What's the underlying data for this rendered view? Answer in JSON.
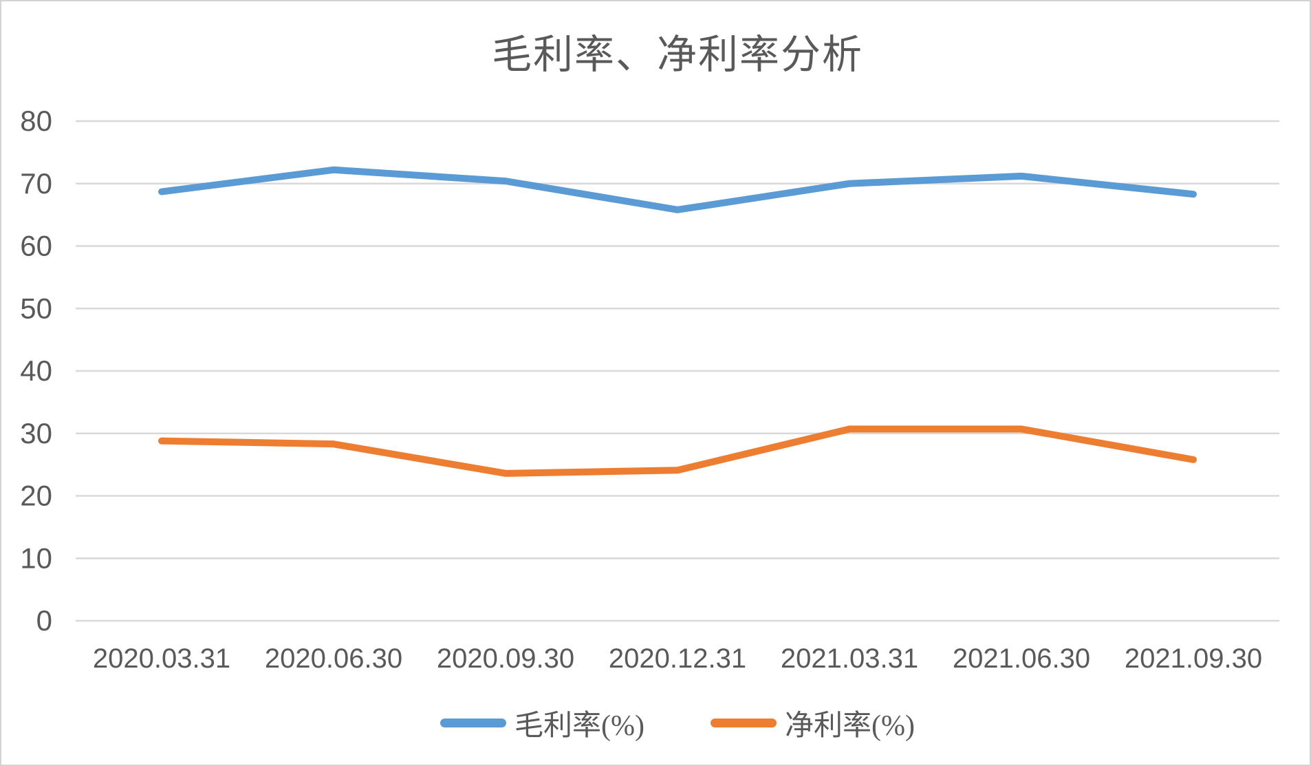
{
  "window": {
    "background": "#ffffff",
    "border_color": "#d3d3d3"
  },
  "chart_data": {
    "type": "line",
    "title": "毛利率、净利率分析",
    "categories": [
      "2020.03.31",
      "2020.06.30",
      "2020.09.30",
      "2020.12.31",
      "2021.03.31",
      "2021.06.30",
      "2021.09.30"
    ],
    "series": [
      {
        "name": "毛利率(%)",
        "color": "#5B9BD5",
        "values": [
          68.7,
          72.2,
          70.4,
          65.8,
          70.0,
          71.2,
          68.3
        ]
      },
      {
        "name": "净利率(%)",
        "color": "#ED7D31",
        "values": [
          28.8,
          28.3,
          23.6,
          24.1,
          30.7,
          30.7,
          25.8
        ]
      }
    ],
    "xlabel": "",
    "ylabel": "",
    "ylim": [
      0,
      80
    ],
    "y_ticks": [
      0,
      10,
      20,
      30,
      40,
      50,
      60,
      70,
      80
    ],
    "grid": "horizontal-only",
    "gridline_color": "#D9D9D9",
    "axis_label_color": "#595959",
    "legend_position": "bottom"
  }
}
